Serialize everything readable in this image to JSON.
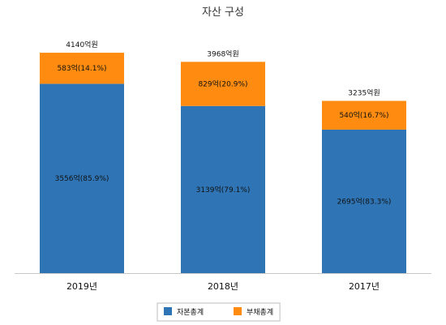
{
  "chart_data": {
    "type": "bar",
    "stacked": true,
    "title": "자산 구성",
    "categories": [
      "2019년",
      "2018년",
      "2017년"
    ],
    "totals": [
      4140,
      3968,
      3235
    ],
    "total_labels": [
      "4140억원",
      "3968억원",
      "3235억원"
    ],
    "series": [
      {
        "name": "자본총계",
        "color": "#2f75b5",
        "values": [
          3556,
          3139,
          2695
        ],
        "labels": [
          "3556억(85.9%)",
          "3139억(79.1%)",
          "2695억(83.3%)"
        ]
      },
      {
        "name": "부채총계",
        "color": "#ff8c10",
        "values": [
          583,
          829,
          540
        ],
        "labels": [
          "583억(14.1%)",
          "829억(20.9%)",
          "540억(16.7%)"
        ]
      }
    ],
    "ylim": [
      0,
      4500
    ],
    "grid": false,
    "y_axis_visible": false,
    "legend_position": "bottom"
  }
}
